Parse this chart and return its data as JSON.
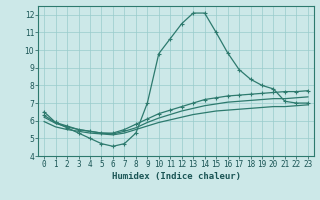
{
  "background_color": "#cce8e8",
  "grid_color": "#99cccc",
  "line_color": "#2d7a6e",
  "xlabel": "Humidex (Indice chaleur)",
  "xlim": [
    -0.5,
    23.5
  ],
  "ylim": [
    4,
    12.5
  ],
  "yticks": [
    4,
    5,
    6,
    7,
    8,
    9,
    10,
    11,
    12
  ],
  "xticks": [
    0,
    1,
    2,
    3,
    4,
    5,
    6,
    7,
    8,
    9,
    10,
    11,
    12,
    13,
    14,
    15,
    16,
    17,
    18,
    19,
    20,
    21,
    22,
    23
  ],
  "curve1_x": [
    0,
    1,
    2,
    3,
    4,
    5,
    6,
    7,
    8,
    9,
    10,
    11,
    12,
    13,
    14,
    15,
    16,
    17,
    18,
    19,
    20,
    21,
    22,
    23
  ],
  "curve1_y": [
    6.5,
    5.9,
    5.6,
    5.3,
    5.0,
    4.7,
    4.55,
    4.7,
    5.3,
    7.0,
    9.8,
    10.65,
    11.5,
    12.1,
    12.1,
    11.0,
    9.85,
    8.9,
    8.35,
    8.0,
    7.8,
    7.1,
    7.0,
    7.0
  ],
  "curve2_x": [
    0,
    1,
    2,
    3,
    4,
    5,
    6,
    7,
    8,
    9,
    10,
    11,
    12,
    13,
    14,
    15,
    16,
    17,
    18,
    19,
    20,
    21,
    22,
    23
  ],
  "curve2_y": [
    6.3,
    5.9,
    5.7,
    5.5,
    5.4,
    5.3,
    5.3,
    5.5,
    5.8,
    6.1,
    6.4,
    6.6,
    6.8,
    7.0,
    7.2,
    7.3,
    7.4,
    7.45,
    7.5,
    7.55,
    7.6,
    7.65,
    7.65,
    7.7
  ],
  "curve3_x": [
    0,
    1,
    2,
    3,
    4,
    5,
    6,
    7,
    8,
    9,
    10,
    11,
    12,
    13,
    14,
    15,
    16,
    17,
    18,
    19,
    20,
    21,
    22,
    23
  ],
  "curve3_y": [
    6.2,
    5.85,
    5.65,
    5.5,
    5.4,
    5.3,
    5.25,
    5.4,
    5.6,
    5.9,
    6.15,
    6.35,
    6.55,
    6.7,
    6.85,
    6.95,
    7.05,
    7.1,
    7.15,
    7.2,
    7.25,
    7.25,
    7.3,
    7.35
  ],
  "curve4_x": [
    0,
    1,
    2,
    3,
    4,
    5,
    6,
    7,
    8,
    9,
    10,
    11,
    12,
    13,
    14,
    15,
    16,
    17,
    18,
    19,
    20,
    21,
    22,
    23
  ],
  "curve4_y": [
    5.95,
    5.65,
    5.5,
    5.4,
    5.3,
    5.25,
    5.2,
    5.3,
    5.5,
    5.7,
    5.9,
    6.05,
    6.2,
    6.35,
    6.45,
    6.55,
    6.6,
    6.65,
    6.7,
    6.75,
    6.8,
    6.8,
    6.85,
    6.9
  ],
  "tick_fontsize": 5.5,
  "xlabel_fontsize": 6.5
}
